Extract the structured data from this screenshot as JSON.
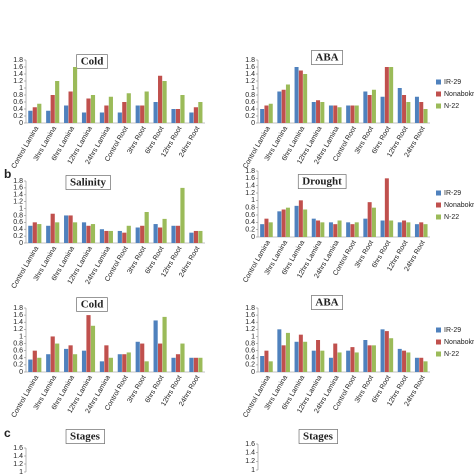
{
  "panel_labels": [
    "b",
    "c"
  ],
  "chart_data": [
    {
      "type": "bar",
      "title": "Cold",
      "legend": false,
      "categories": [
        "Control Lamina",
        "3hrs Lamina",
        "6hrs Lamina",
        "12hrs Lamina",
        "24hrs Lamina",
        "Control Root",
        "3hrs Root",
        "6hrs Root",
        "12hrs Root",
        "24hrs Root"
      ],
      "series": [
        {
          "color": "#4f81bd",
          "values": [
            0.35,
            0.35,
            0.5,
            0.3,
            0.3,
            0.3,
            0.5,
            0.6,
            0.4,
            0.3
          ]
        },
        {
          "color": "#c0504d",
          "values": [
            0.45,
            0.8,
            0.9,
            0.7,
            0.5,
            0.6,
            0.5,
            1.35,
            0.4,
            0.45
          ]
        },
        {
          "color": "#9bbb59",
          "values": [
            0.55,
            1.2,
            1.6,
            0.8,
            0.75,
            0.85,
            0.9,
            1.2,
            0.8,
            0.6
          ]
        }
      ],
      "ylim": [
        0,
        1.8
      ],
      "yticks": [
        0,
        0.2,
        0.4,
        0.6,
        0.8,
        1,
        1.2,
        1.4,
        1.6,
        1.8
      ]
    },
    {
      "type": "bar",
      "title": "ABA",
      "legend": "right",
      "categories": [
        "Control Lamina",
        "3hrs Lamina",
        "6hrs Lamina",
        "12hrs Lamina",
        "24hrs Lamina",
        "Control Root",
        "3hrs Root",
        "6hrs Root",
        "12hrs Root",
        "24hrs Root"
      ],
      "series": [
        {
          "name": "IR-29",
          "color": "#4f81bd",
          "values": [
            0.4,
            0.9,
            1.6,
            0.6,
            0.5,
            0.5,
            0.9,
            0.75,
            1.0,
            0.75
          ]
        },
        {
          "name": "Nonabokra",
          "color": "#c0504d",
          "values": [
            0.5,
            0.95,
            1.5,
            0.65,
            0.5,
            0.5,
            0.8,
            1.6,
            0.8,
            0.6
          ]
        },
        {
          "name": "N-22",
          "color": "#9bbb59",
          "values": [
            0.55,
            1.1,
            1.4,
            0.6,
            0.45,
            0.5,
            0.95,
            1.6,
            0.6,
            0.4
          ]
        }
      ],
      "ylim": [
        0,
        1.8
      ],
      "yticks": [
        0,
        0.2,
        0.4,
        0.6,
        0.8,
        1,
        1.2,
        1.4,
        1.6,
        1.8
      ]
    },
    {
      "type": "bar",
      "title": "Salinity",
      "legend": false,
      "categories": [
        "Control Lamina",
        "3hrs Lamina",
        "6hrs Lamina",
        "12hrs Lamina",
        "24hrs Lamina",
        "Control Root",
        "3hrs Root",
        "6hrs Root",
        "12hrs Root",
        "24hrs Root"
      ],
      "series": [
        {
          "color": "#4f81bd",
          "values": [
            0.5,
            0.5,
            0.8,
            0.6,
            0.4,
            0.35,
            0.45,
            0.55,
            0.5,
            0.3
          ]
        },
        {
          "color": "#c0504d",
          "values": [
            0.6,
            0.85,
            0.8,
            0.5,
            0.35,
            0.3,
            0.5,
            0.45,
            0.5,
            0.35
          ]
        },
        {
          "color": "#9bbb59",
          "values": [
            0.55,
            0.6,
            0.6,
            0.55,
            0.35,
            0.5,
            0.9,
            0.7,
            1.6,
            0.35
          ]
        }
      ],
      "ylim": [
        0,
        1.8
      ],
      "yticks": [
        0,
        0.2,
        0.4,
        0.6,
        0.8,
        1,
        1.2,
        1.4,
        1.6,
        1.8
      ]
    },
    {
      "type": "bar",
      "title": "Drought",
      "legend": "right",
      "categories": [
        "Control Lamina",
        "3hrs Lamina",
        "6hrs Lamina",
        "12hrs Lamina",
        "24hrs Lamina",
        "Control Root",
        "3hrs Root",
        "6hrs Root",
        "12hrs Root",
        "24hrs Root"
      ],
      "series": [
        {
          "name": "IR-29",
          "color": "#4f81bd",
          "values": [
            0.35,
            0.7,
            0.85,
            0.5,
            0.4,
            0.4,
            0.5,
            0.45,
            0.4,
            0.35
          ]
        },
        {
          "name": "Nonabokra",
          "color": "#c0504d",
          "values": [
            0.5,
            0.75,
            1.0,
            0.45,
            0.35,
            0.35,
            0.95,
            1.6,
            0.45,
            0.4
          ]
        },
        {
          "name": "N-22",
          "color": "#9bbb59",
          "values": [
            0.4,
            0.8,
            0.75,
            0.4,
            0.45,
            0.4,
            0.8,
            0.45,
            0.4,
            0.35
          ]
        }
      ],
      "ylim": [
        0,
        1.8
      ],
      "yticks": [
        0,
        0.2,
        0.4,
        0.6,
        0.8,
        1,
        1.2,
        1.4,
        1.6,
        1.8
      ]
    },
    {
      "type": "bar",
      "title": "Cold",
      "legend": false,
      "categories": [
        "Control Lamina",
        "3hrs Lamina",
        "6hrs Lamina",
        "12hrs Lamina",
        "24hrs Lamina",
        "Control Root",
        "3hrs Root",
        "6hrs Root",
        "12hrs Root",
        "24hrs Root"
      ],
      "series": [
        {
          "color": "#4f81bd",
          "values": [
            0.35,
            0.5,
            0.65,
            0.6,
            0.3,
            0.5,
            0.85,
            1.45,
            0.4,
            0.4
          ]
        },
        {
          "color": "#c0504d",
          "values": [
            0.6,
            1.0,
            0.75,
            1.6,
            0.75,
            0.5,
            0.8,
            0.8,
            0.5,
            0.4
          ]
        },
        {
          "color": "#9bbb59",
          "values": [
            0.4,
            0.8,
            0.5,
            1.3,
            0.4,
            0.55,
            0.3,
            1.55,
            0.8,
            0.4
          ]
        }
      ],
      "ylim": [
        0,
        1.8
      ],
      "yticks": [
        0,
        0.2,
        0.4,
        0.6,
        0.8,
        1,
        1.2,
        1.4,
        1.6,
        1.8
      ]
    },
    {
      "type": "bar",
      "title": "ABA",
      "legend": "right",
      "categories": [
        "Control Lamina",
        "3hrs Lamina",
        "6hrs Lamina",
        "12hrs Lamina",
        "24hrs Lamina",
        "Control Root",
        "3hrs Root",
        "6hrs Root",
        "12hrs Root",
        "24hrs Root"
      ],
      "series": [
        {
          "name": "IR-29",
          "color": "#4f81bd",
          "values": [
            0.45,
            1.2,
            0.85,
            0.6,
            0.4,
            0.6,
            0.9,
            1.2,
            0.65,
            0.4
          ]
        },
        {
          "name": "Nonabokra",
          "color": "#c0504d",
          "values": [
            0.6,
            0.75,
            1.05,
            0.9,
            0.8,
            0.7,
            0.75,
            1.15,
            0.6,
            0.4
          ]
        },
        {
          "name": "N-22",
          "color": "#9bbb59",
          "values": [
            0.3,
            1.1,
            0.85,
            0.6,
            0.55,
            0.55,
            0.75,
            0.95,
            0.55,
            0.3
          ]
        }
      ],
      "ylim": [
        0,
        1.8
      ],
      "yticks": [
        0,
        0.2,
        0.4,
        0.6,
        0.8,
        1,
        1.2,
        1.4,
        1.6,
        1.8
      ]
    },
    {
      "type": "bar",
      "title": "Stages",
      "ylim": [
        1,
        1.6
      ],
      "yticks": [
        1,
        1.2,
        1.4,
        1.6
      ]
    },
    {
      "type": "bar",
      "title": "Stages",
      "ylim": [
        1,
        1.6
      ],
      "yticks": [
        1,
        1.2,
        1.4,
        1.6
      ]
    }
  ]
}
